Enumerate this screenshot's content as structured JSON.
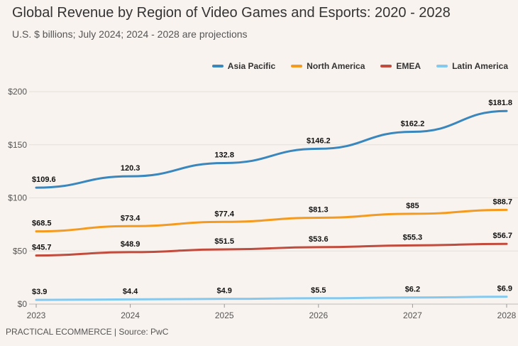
{
  "header": {
    "title": "Global Revenue by Region of Video Games and Esports: 2020 - 2028",
    "subtitle": "U.S. $ billions; July 2024; 2024 - 2028 are projections"
  },
  "footer": {
    "source": "PRACTICAL ECOMMERCE | Source: PwC"
  },
  "chart_data": {
    "type": "line",
    "title": "Global Revenue by Region of Video Games and Esports: 2020 - 2028",
    "subtitle": "U.S. $ billions; July 2024; 2024 - 2028 are projections",
    "x": [
      "2023",
      "2024",
      "2025",
      "2026",
      "2027",
      "2028"
    ],
    "ylim": [
      0,
      200
    ],
    "yticks": [
      0,
      50,
      100,
      150,
      200
    ],
    "ytick_labels": [
      "$0",
      "$50",
      "$100",
      "$150",
      "$200"
    ],
    "grid": true,
    "legend_position": "top-right",
    "series": [
      {
        "name": "Asia Pacific",
        "color": "#3a87bd",
        "values": [
          109.6,
          120.3,
          132.8,
          146.2,
          162.2,
          181.8
        ],
        "labels": [
          "$109.6",
          "120.3",
          "132.8",
          "$146.2",
          "$162.2",
          "$181.8"
        ]
      },
      {
        "name": "North America",
        "color": "#f39a1f",
        "values": [
          68.5,
          73.4,
          77.4,
          81.3,
          85,
          88.7
        ],
        "labels": [
          "$68.5",
          "$73.4",
          "$77.4",
          "$81.3",
          "$85",
          "$88.7"
        ]
      },
      {
        "name": "EMEA",
        "color": "#c14b3c",
        "values": [
          45.7,
          48.9,
          51.5,
          53.6,
          55.3,
          56.7
        ],
        "labels": [
          "$45.7",
          "$48.9",
          "$51.5",
          "$53.6",
          "$55.3",
          "$56.7"
        ]
      },
      {
        "name": "Latin America",
        "color": "#86c9ef",
        "values": [
          3.9,
          4.4,
          4.9,
          5.5,
          6.2,
          6.9
        ],
        "labels": [
          "$3.9",
          "$4.4",
          "$4.9",
          "$5.5",
          "$6.2",
          "$6.9"
        ]
      }
    ]
  }
}
